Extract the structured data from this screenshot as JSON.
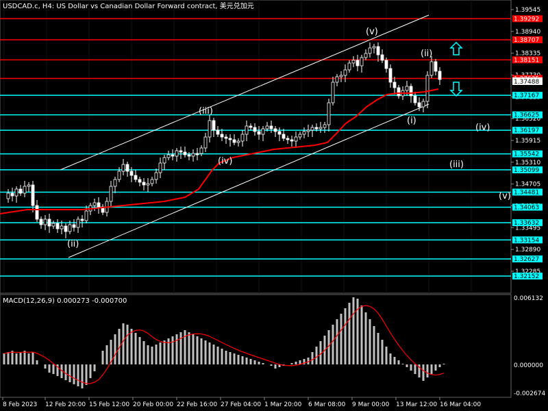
{
  "header": {
    "title": "USDCAD.c, H4:  US Dollar vs Canadian Dollar Forward contract, 美元兑加元"
  },
  "colors": {
    "background": "#000000",
    "grid": "#1a1a1a",
    "candle": "#ffffff",
    "ma": "#ff0000",
    "channel": "#ffffff",
    "red_level": "#ff0000",
    "cyan_level": "#00ffff",
    "macd_hist": "#c0c0c0",
    "macd_signal": "#ff0000",
    "arrow_up": "#00ffff",
    "arrow_down": "#00ffff"
  },
  "price_axis": {
    "ticks": [
      "1.39545",
      "1.38940",
      "1.38335",
      "1.37730",
      "1.37125",
      "1.36520",
      "1.35915",
      "1.35310",
      "1.34705",
      "1.34100",
      "1.33495",
      "1.32890",
      "1.32285"
    ],
    "current_price": "1.37488"
  },
  "levels": [
    {
      "price": "1.39927",
      "type": "red"
    },
    {
      "price": "1.39292",
      "type": "red"
    },
    {
      "price": "1.38707",
      "type": "red"
    },
    {
      "price": "1.38151",
      "type": "red"
    },
    {
      "price": "1.37635",
      "type": "red"
    },
    {
      "price": "1.37167",
      "type": "cyan"
    },
    {
      "price": "1.36625",
      "type": "cyan"
    },
    {
      "price": "1.36197",
      "type": "cyan"
    },
    {
      "price": "1.35542",
      "type": "cyan"
    },
    {
      "price": "1.35099",
      "type": "cyan"
    },
    {
      "price": "1.34481",
      "type": "cyan"
    },
    {
      "price": "1.34063",
      "type": "cyan"
    },
    {
      "price": "1.33632",
      "type": "cyan"
    },
    {
      "price": "1.33154",
      "type": "cyan"
    },
    {
      "price": "1.32627",
      "type": "cyan"
    },
    {
      "price": "1.32152",
      "type": "cyan"
    }
  ],
  "time_axis": [
    "8 Feb 2023",
    "12 Feb 20:00",
    "15 Feb 12:00",
    "20 Feb 00:00",
    "22 Feb 16:00",
    "27 Feb 04:00",
    "1 Mar 20:00",
    "6 Mar 08:00",
    "9 Mar 00:00",
    "13 Mar 12:00",
    "16 Mar 04:00"
  ],
  "wave_labels": [
    "(ii)",
    "(iii)",
    "(iv)",
    "(v)",
    "(ii)",
    "(i)",
    "(iv)",
    "(iii)",
    "(v)"
  ],
  "macd": {
    "label": "MACD(12,26,9) 0.000273 -0.000700",
    "ticks": [
      "0.006132",
      "0.000000",
      "-0.002674"
    ]
  }
}
